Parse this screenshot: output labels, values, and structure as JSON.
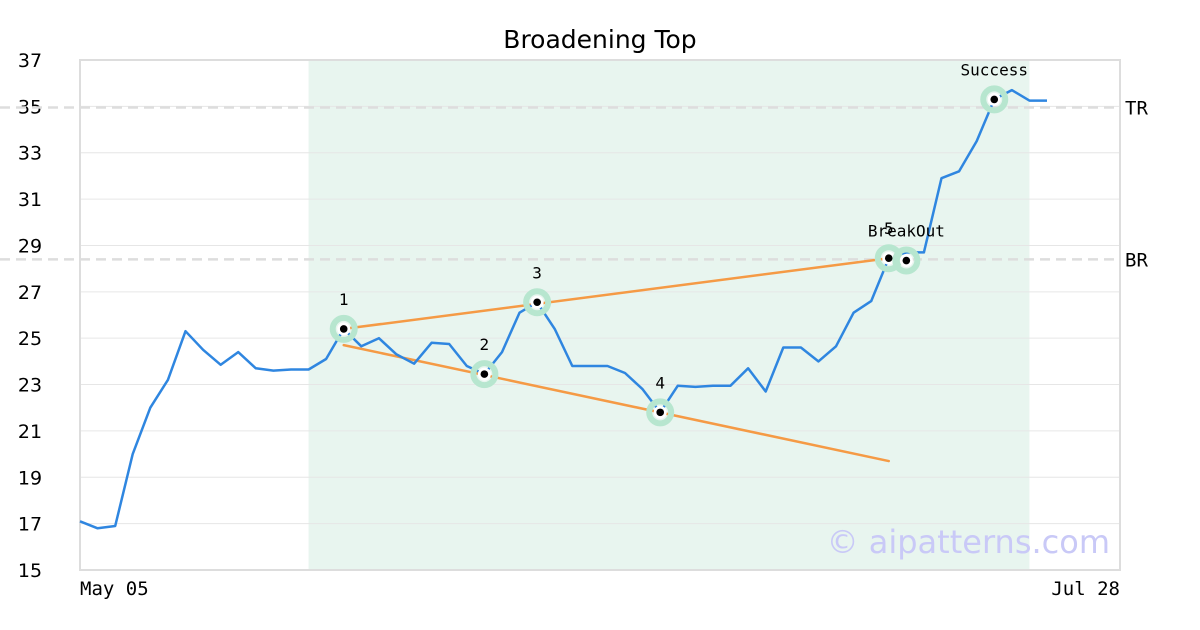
{
  "chart_data": {
    "type": "line",
    "title": "Broadening Top",
    "xlabel": "",
    "ylabel": "",
    "x_tick_labels": [
      "May 05",
      "Jul 28"
    ],
    "ylim": [
      15,
      37
    ],
    "y_ticks": [
      15,
      17,
      19,
      21,
      23,
      25,
      27,
      29,
      31,
      33,
      35,
      37
    ],
    "grid": true,
    "watermark": "© aipatterns.com",
    "colors": {
      "price": "#2f86e0",
      "trend": "#f59a45",
      "highlight": "#e8f5ef",
      "marker_ring": "#b7e6cf",
      "ref_line": "#dddddd",
      "grid": "#e6e6e6",
      "frame": "#dddddd"
    },
    "series": [
      {
        "values": [
          17.1,
          16.8,
          16.9,
          20.0,
          22.0,
          23.2,
          25.3,
          24.5,
          23.85,
          24.4,
          23.7,
          23.6,
          23.65,
          23.65,
          24.1,
          25.4,
          24.65,
          25.0,
          24.3,
          23.9,
          24.8,
          24.75,
          23.8,
          23.45,
          24.4,
          26.1,
          26.55,
          25.4,
          23.8,
          23.8,
          23.8,
          23.5,
          22.8,
          21.8,
          22.95,
          22.9,
          22.95,
          22.95,
          23.7,
          22.7,
          24.6,
          24.6,
          24.0,
          24.65,
          26.1,
          26.6,
          28.45,
          28.7,
          28.7,
          31.9,
          32.2,
          33.5,
          35.3,
          35.7,
          35.25,
          35.25
        ]
      }
    ],
    "highlight_range": [
      13,
      54
    ],
    "reference_lines": [
      {
        "label": "TR",
        "value": 34.95
      },
      {
        "label": "BR",
        "value": 28.4
      }
    ],
    "trend_lines": [
      {
        "from": [
          15,
          25.4
        ],
        "to": [
          46,
          28.45
        ]
      },
      {
        "from": [
          15,
          24.7
        ],
        "to": [
          46,
          19.7
        ]
      }
    ],
    "points": [
      {
        "label": "1",
        "x": 15,
        "y": 25.4
      },
      {
        "label": "2",
        "x": 23,
        "y": 23.45
      },
      {
        "label": "3",
        "x": 26,
        "y": 26.55
      },
      {
        "label": "4",
        "x": 33,
        "y": 21.8
      },
      {
        "label": "5",
        "x": 46,
        "y": 28.45
      },
      {
        "label": "BreakOut",
        "x": 47,
        "y": 28.35
      },
      {
        "label": "Success",
        "x": 52,
        "y": 35.3
      }
    ]
  }
}
